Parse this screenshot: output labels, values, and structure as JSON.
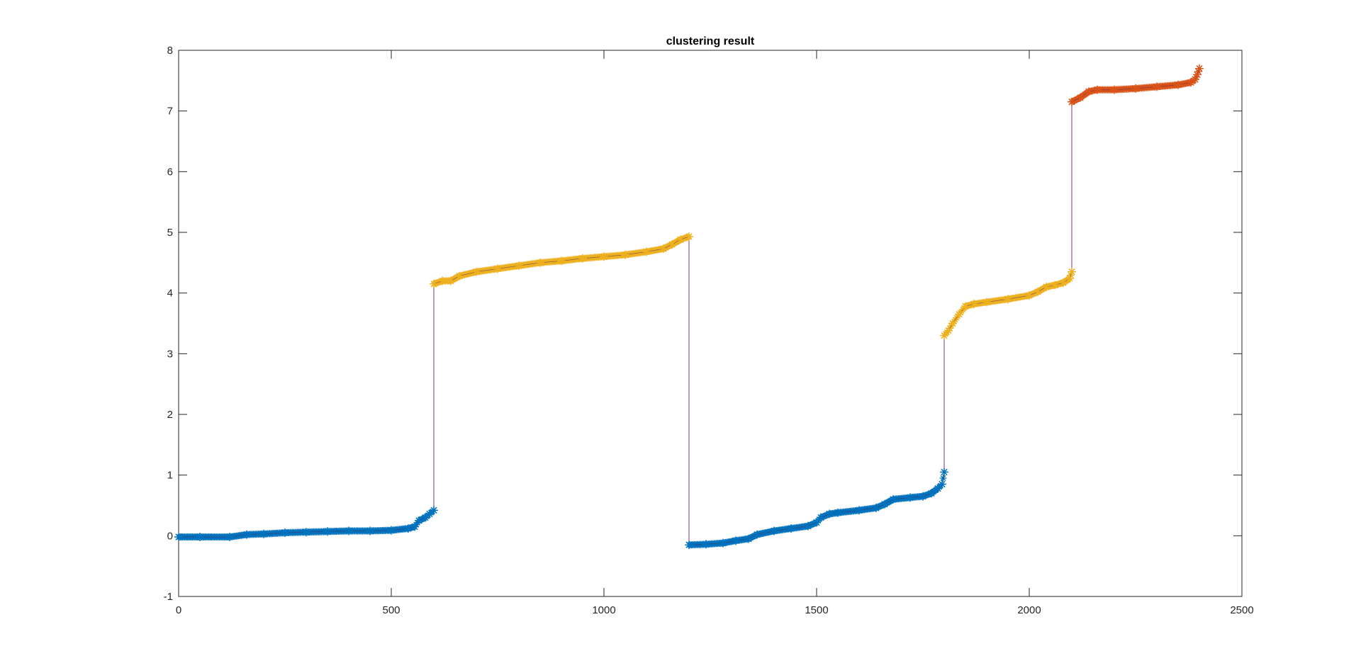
{
  "chart_data": {
    "type": "scatter",
    "title": "clustering result",
    "xlabel": "",
    "ylabel": "",
    "xlim": [
      0,
      2500
    ],
    "ylim": [
      -1,
      8
    ],
    "xticks": [
      0,
      500,
      1000,
      1500,
      2000,
      2500
    ],
    "yticks": [
      -1,
      0,
      1,
      2,
      3,
      4,
      5,
      6,
      7,
      8
    ],
    "grid": false,
    "legend": "none",
    "marker": "*",
    "connecting_line_color": "#7E2F8E",
    "colors": {
      "cluster_low": "#0072BD",
      "cluster_mid": "#EDB120",
      "cluster_high": "#D95319"
    },
    "series": [
      {
        "color": "#0072BD",
        "segments": [
          {
            "points": [
              [
                0,
                -0.02
              ],
              [
                50,
                -0.02
              ],
              [
                120,
                -0.02
              ],
              [
                160,
                0.02
              ],
              [
                200,
                0.03
              ],
              [
                250,
                0.05
              ],
              [
                300,
                0.06
              ],
              [
                350,
                0.07
              ],
              [
                400,
                0.08
              ],
              [
                450,
                0.08
              ],
              [
                500,
                0.09
              ],
              [
                540,
                0.12
              ],
              [
                555,
                0.15
              ],
              [
                565,
                0.25
              ],
              [
                580,
                0.3
              ],
              [
                590,
                0.36
              ],
              [
                600,
                0.42
              ]
            ]
          },
          {
            "points": [
              [
                1200,
                -0.15
              ],
              [
                1240,
                -0.14
              ],
              [
                1280,
                -0.12
              ],
              [
                1310,
                -0.08
              ],
              [
                1340,
                -0.05
              ],
              [
                1360,
                0.02
              ],
              [
                1400,
                0.08
              ],
              [
                1440,
                0.12
              ],
              [
                1480,
                0.16
              ],
              [
                1500,
                0.22
              ],
              [
                1510,
                0.3
              ],
              [
                1530,
                0.36
              ],
              [
                1550,
                0.38
              ],
              [
                1600,
                0.42
              ],
              [
                1640,
                0.46
              ],
              [
                1660,
                0.52
              ],
              [
                1680,
                0.6
              ],
              [
                1720,
                0.63
              ],
              [
                1750,
                0.65
              ],
              [
                1770,
                0.7
              ],
              [
                1785,
                0.78
              ],
              [
                1795,
                0.85
              ],
              [
                1800,
                1.05
              ]
            ]
          }
        ]
      },
      {
        "color": "#EDB120",
        "segments": [
          {
            "points": [
              [
                600,
                4.15
              ],
              [
                620,
                4.2
              ],
              [
                640,
                4.2
              ],
              [
                660,
                4.28
              ],
              [
                700,
                4.35
              ],
              [
                750,
                4.4
              ],
              [
                800,
                4.45
              ],
              [
                850,
                4.5
              ],
              [
                900,
                4.53
              ],
              [
                950,
                4.57
              ],
              [
                1000,
                4.6
              ],
              [
                1050,
                4.63
              ],
              [
                1100,
                4.68
              ],
              [
                1140,
                4.73
              ],
              [
                1160,
                4.8
              ],
              [
                1180,
                4.88
              ],
              [
                1200,
                4.93
              ]
            ]
          },
          {
            "points": [
              [
                1800,
                3.3
              ],
              [
                1810,
                3.38
              ],
              [
                1820,
                3.5
              ],
              [
                1835,
                3.65
              ],
              [
                1850,
                3.78
              ],
              [
                1870,
                3.82
              ],
              [
                1900,
                3.85
              ],
              [
                1950,
                3.9
              ],
              [
                2000,
                3.96
              ],
              [
                2020,
                4.02
              ],
              [
                2040,
                4.1
              ],
              [
                2060,
                4.13
              ],
              [
                2080,
                4.17
              ],
              [
                2095,
                4.24
              ],
              [
                2100,
                4.35
              ]
            ]
          }
        ]
      },
      {
        "color": "#D95319",
        "segments": [
          {
            "points": [
              [
                2100,
                7.15
              ],
              [
                2120,
                7.22
              ],
              [
                2140,
                7.32
              ],
              [
                2160,
                7.35
              ],
              [
                2200,
                7.35
              ],
              [
                2250,
                7.37
              ],
              [
                2300,
                7.4
              ],
              [
                2350,
                7.43
              ],
              [
                2380,
                7.47
              ],
              [
                2390,
                7.52
              ],
              [
                2395,
                7.6
              ],
              [
                2400,
                7.7
              ]
            ]
          }
        ]
      }
    ],
    "jump_lines": [
      {
        "x": 600,
        "y_from": 0.42,
        "y_to": 4.15
      },
      {
        "x": 1200,
        "y_from": 4.93,
        "y_to": -0.15
      },
      {
        "x": 1800,
        "y_from": 1.05,
        "y_to": 3.3
      },
      {
        "x": 2100,
        "y_from": 4.35,
        "y_to": 7.15
      }
    ]
  }
}
